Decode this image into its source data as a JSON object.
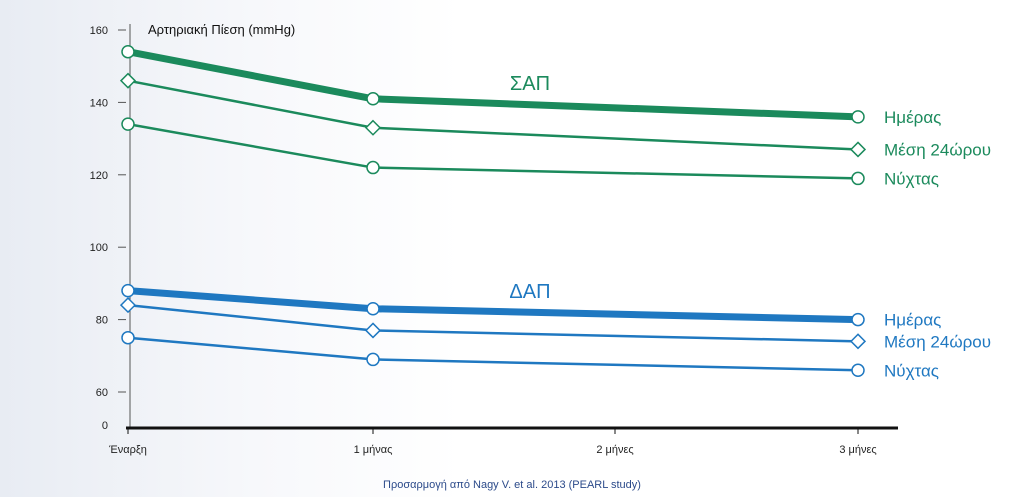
{
  "chart_data": {
    "type": "line",
    "ylabel": "Αρτηριακή Πίεση (mmHg)",
    "x": [
      "Έναρξη",
      "1 μήνας",
      "2 μήνες",
      "3 μήνες"
    ],
    "yticks": [
      0,
      60,
      80,
      100,
      120,
      140,
      160
    ],
    "ylim": [
      0,
      160
    ],
    "y_axis_break": "between 0 and 60",
    "grid": false,
    "source_note": "Προσαρμογή από Nagy V. et al. 2013 (PEARL study)",
    "groups": [
      {
        "label": "ΣΑΠ",
        "color": "#1b8a5c",
        "series": [
          {
            "name": "Ημέρας",
            "marker": "circle",
            "thickness": "thick",
            "x": [
              0,
              1,
              3
            ],
            "values": [
              154,
              141,
              136
            ]
          },
          {
            "name": "Μέση 24ώρου",
            "marker": "diamond",
            "thickness": "normal",
            "x": [
              0,
              1,
              3
            ],
            "values": [
              146,
              133,
              127
            ]
          },
          {
            "name": "Νύχτας",
            "marker": "circle",
            "thickness": "normal",
            "x": [
              0,
              1,
              3
            ],
            "values": [
              134,
              122,
              119
            ]
          }
        ]
      },
      {
        "label": "ΔΑΠ",
        "color": "#1f78c1",
        "series": [
          {
            "name": "Ημέρας",
            "marker": "circle",
            "thickness": "thick",
            "x": [
              0,
              1,
              3
            ],
            "values": [
              88,
              83,
              80
            ]
          },
          {
            "name": "Μέση 24ώρου",
            "marker": "diamond",
            "thickness": "normal",
            "x": [
              0,
              1,
              3
            ],
            "values": [
              84,
              77,
              74
            ]
          },
          {
            "name": "Νύχτας",
            "marker": "circle",
            "thickness": "normal",
            "x": [
              0,
              1,
              3
            ],
            "values": [
              75,
              69,
              66
            ]
          }
        ]
      }
    ]
  }
}
